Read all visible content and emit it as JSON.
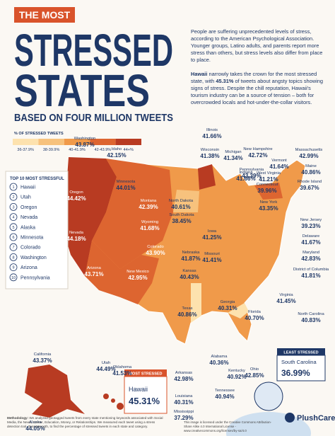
{
  "header": {
    "badge": "THE MOST",
    "title_line1": "STRESSED",
    "title_line2": "STATES",
    "subtitle": "BASED ON FOUR MILLION TWEETS"
  },
  "intro": {
    "paragraph1": "People are suffering unprecedented levels of stress, according to the American Psychological Association. Younger groups, Latino adults, and parents report more stress than others, but stress levels also differ from place to place.",
    "paragraph2_bold1": "Hawaii",
    "paragraph2_text1": " narrowly takes the crown for the most stressed state, with ",
    "paragraph2_bold2": "45.31%",
    "paragraph2_text2": " of tweets about angsty topics showing signs of stress. Despite the chill reputation, Hawaii's tourism industry can be a source of tension – both for overcrowded locals and hot-under-the-collar visitors."
  },
  "legend": {
    "title": "% OF STRESSED TWEETS",
    "items": [
      {
        "label": "36-37.9%",
        "color": "#fde2ae"
      },
      {
        "label": "38-39.9%",
        "color": "#f7c27d"
      },
      {
        "label": "40-41.9%",
        "color": "#f09a4a"
      },
      {
        "label": "42-43.9%",
        "color": "#dd6530"
      },
      {
        "label": "44+%",
        "color": "#b83b22"
      }
    ]
  },
  "top10": {
    "title": "TOP 10 MOST STRESSFUL",
    "items": [
      {
        "rank": "1",
        "name": "Hawaii"
      },
      {
        "rank": "2",
        "name": "Utah"
      },
      {
        "rank": "3",
        "name": "Oregon"
      },
      {
        "rank": "4",
        "name": "Nevada"
      },
      {
        "rank": "5",
        "name": "Alaska"
      },
      {
        "rank": "6",
        "name": "Minnesota"
      },
      {
        "rank": "7",
        "name": "Colorado"
      },
      {
        "rank": "8",
        "name": "Washington"
      },
      {
        "rank": "9",
        "name": "Arizona"
      },
      {
        "rank": "10",
        "name": "Pennsylvania"
      }
    ]
  },
  "states": [
    {
      "name": "Washington",
      "value": "43.87%"
    },
    {
      "name": "Idaho",
      "value": "42.15%"
    },
    {
      "name": "Oregon",
      "value": "44.42%"
    },
    {
      "name": "Montana",
      "value": "42.39%"
    },
    {
      "name": "Wyoming",
      "value": "41.68%"
    },
    {
      "name": "Nevada",
      "value": "44.18%"
    },
    {
      "name": "California",
      "value": "43.37%"
    },
    {
      "name": "Utah",
      "value": "44.49%"
    },
    {
      "name": "Arizona",
      "value": "43.71%"
    },
    {
      "name": "Colorado",
      "value": "43.90%"
    },
    {
      "name": "New Mexico",
      "value": "42.95%"
    },
    {
      "name": "Minnesota",
      "value": "44.01%"
    },
    {
      "name": "North Dakota",
      "value": "40.61%"
    },
    {
      "name": "South Dakota",
      "value": "38.45%"
    },
    {
      "name": "Nebraska",
      "value": "41.87%"
    },
    {
      "name": "Kansas",
      "value": "40.43%"
    },
    {
      "name": "Oklahoma",
      "value": "41.53%"
    },
    {
      "name": "Texas",
      "value": "40.86%"
    },
    {
      "name": "Wisconsin",
      "value": "41.38%"
    },
    {
      "name": "Iowa",
      "value": "41.25%"
    },
    {
      "name": "Missouri",
      "value": "41.41%"
    },
    {
      "name": "Illinois",
      "value": "41.66%"
    },
    {
      "name": "Michigan",
      "value": "41.34%"
    },
    {
      "name": "Indiana",
      "value": "41.66%"
    },
    {
      "name": "West Virginia",
      "value": "41.21%"
    },
    {
      "name": "Arkansas",
      "value": "42.98%"
    },
    {
      "name": "Louisiana",
      "value": "40.31%"
    },
    {
      "name": "Mississippi",
      "value": "37.29%"
    },
    {
      "name": "Alabama",
      "value": "40.36%"
    },
    {
      "name": "Tennessee",
      "value": "40.94%"
    },
    {
      "name": "Kentucky",
      "value": "40.92%"
    },
    {
      "name": "Ohio",
      "value": "42.85%"
    },
    {
      "name": "Georgia",
      "value": "40.31%"
    },
    {
      "name": "Florida",
      "value": "40.70%"
    },
    {
      "name": "New Hampshire",
      "value": "42.72%"
    },
    {
      "name": "Massachusetts",
      "value": "42.99%"
    },
    {
      "name": "Pennsylvania",
      "value": "43.39%"
    },
    {
      "name": "Vermont",
      "value": "41.64%"
    },
    {
      "name": "Maine",
      "value": "40.86%"
    },
    {
      "name": "Connecticut",
      "value": "39.96%"
    },
    {
      "name": "Rhode Island",
      "value": "39.67%"
    },
    {
      "name": "New York",
      "value": "43.35%"
    },
    {
      "name": "New Jersey",
      "value": "39.23%"
    },
    {
      "name": "Delaware",
      "value": "41.67%"
    },
    {
      "name": "Maryland",
      "value": "42.83%"
    },
    {
      "name": "District of Columbia",
      "value": "41.81%"
    },
    {
      "name": "Virginia",
      "value": "41.45%"
    },
    {
      "name": "North Carolina",
      "value": "40.83%"
    },
    {
      "name": "Alaska",
      "value": "44.05%"
    }
  ],
  "most_stressed": {
    "tag": "MOST STRESSED",
    "name": "Hawaii",
    "value": "45.31%"
  },
  "least_stressed": {
    "tag": "LEAST STRESSED",
    "name": "South Carolina",
    "value": "36.99%"
  },
  "footer": {
    "methodology_label": "Methodology:",
    "methodology": " We analyzed geotagged tweets from every state mentioning keywords associated with Social Media, the News, Career, Education, Money, or Relationships. We measured each tweet using a stress detection tool, TensiStrength, to find the percentage of stressed tweets in each state and category.",
    "license": "This image is licensed under the Creative Commons Attribution-Share Alike 4.0 International License - www.creativecommons.org/licenses/by-sa/4.0",
    "brand": "PlushCare"
  }
}
